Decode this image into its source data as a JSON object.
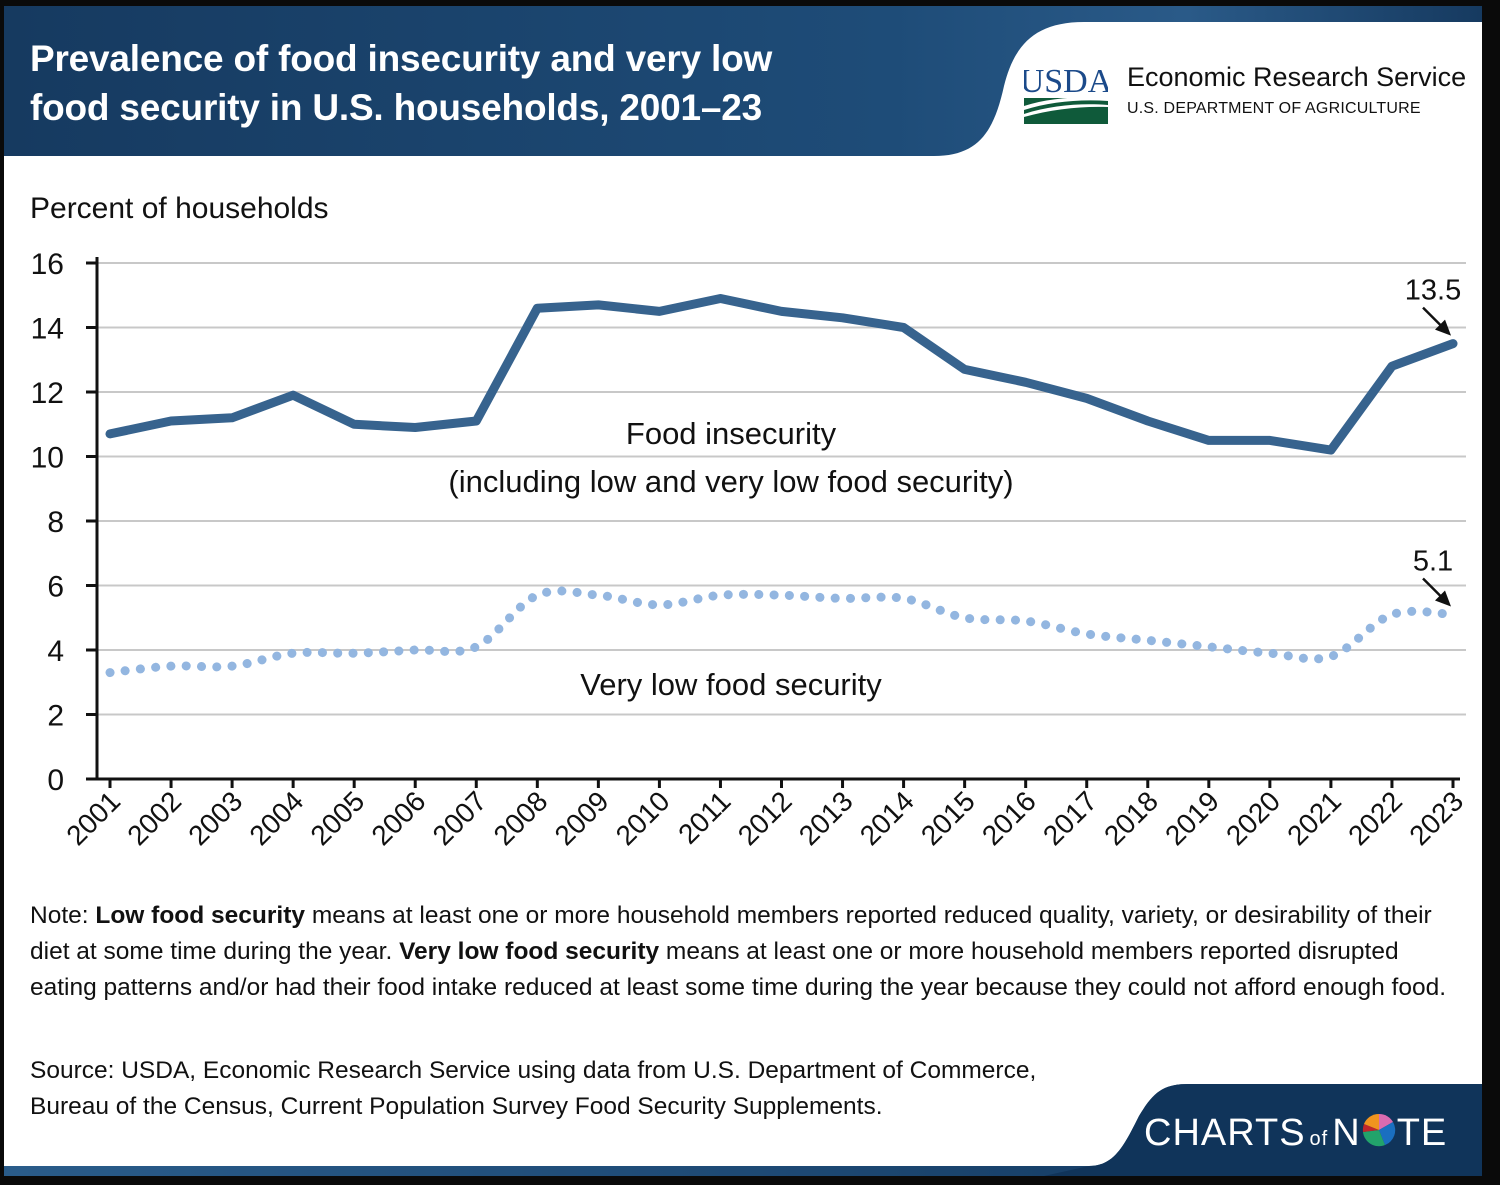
{
  "header": {
    "title_line1": "Prevalence of food insecurity and very low",
    "title_line2": "food security in U.S. households, 2001–23",
    "logo_text": "USDA",
    "agency_name": "Economic Research Service",
    "department": "U.S. DEPARTMENT OF AGRICULTURE"
  },
  "colors": {
    "header_navy": "#1d4872",
    "food_insecurity_line": "#37638e",
    "very_low_line": "#93b6e0",
    "usda_blue": "#1b4a8a",
    "usda_green": "#0f5a3a",
    "grid": "#c8c8c8"
  },
  "chart_data": {
    "type": "line",
    "title": "Prevalence of food insecurity and very low food security in U.S. households, 2001–23",
    "xlabel": "",
    "ylabel": "Percent of households",
    "ylim": [
      0,
      16
    ],
    "yticks": [
      0,
      2,
      4,
      6,
      8,
      10,
      12,
      14,
      16
    ],
    "grid": true,
    "x": [
      "2001",
      "2002",
      "2003",
      "2004",
      "2005",
      "2006",
      "2007",
      "2008",
      "2009",
      "2010",
      "2011",
      "2012",
      "2013",
      "2014",
      "2015",
      "2016",
      "2017",
      "2018",
      "2019",
      "2020",
      "2021",
      "2022",
      "2023"
    ],
    "series": [
      {
        "name": "Food insecurity (including low and very low food security)",
        "label_line1": "Food insecurity",
        "label_line2": "(including low and very low food security)",
        "style": "solid",
        "values": [
          10.7,
          11.1,
          11.2,
          11.9,
          11.0,
          10.9,
          11.1,
          14.6,
          14.7,
          14.5,
          14.9,
          14.5,
          14.3,
          14.0,
          12.7,
          12.3,
          11.8,
          11.1,
          10.5,
          10.5,
          10.2,
          12.8,
          13.5
        ]
      },
      {
        "name": "Very low food security",
        "label_line1": "Very low food security",
        "style": "dotted",
        "values": [
          3.3,
          3.5,
          3.5,
          3.9,
          3.9,
          4.0,
          4.1,
          5.7,
          5.7,
          5.4,
          5.7,
          5.7,
          5.6,
          5.6,
          5.0,
          4.9,
          4.5,
          4.3,
          4.1,
          3.9,
          3.8,
          5.1,
          5.1
        ]
      }
    ],
    "annotations": [
      {
        "series": 0,
        "x": "2023",
        "text": "13.5"
      },
      {
        "series": 1,
        "x": "2023",
        "text": "5.1"
      }
    ]
  },
  "note": {
    "prefix": "Note: ",
    "term1": "Low food security",
    "text1": " means at least one or more household members reported reduced quality, variety, or desirability of their diet at some time during the year. ",
    "term2": "Very low food security",
    "text2": " means at least one or more household members reported disrupted eating patterns and/or had their food intake reduced at least some time during the year because they could not afford enough food."
  },
  "source": "Source: USDA, Economic Research Service using data from U.S. Department of Commerce, Bureau of the Census, Current Population Survey Food Security Supplements.",
  "footer": {
    "brand_part1": "CHARTS",
    "brand_of": "of",
    "brand_part2a": "N",
    "brand_part2b": "TE"
  }
}
